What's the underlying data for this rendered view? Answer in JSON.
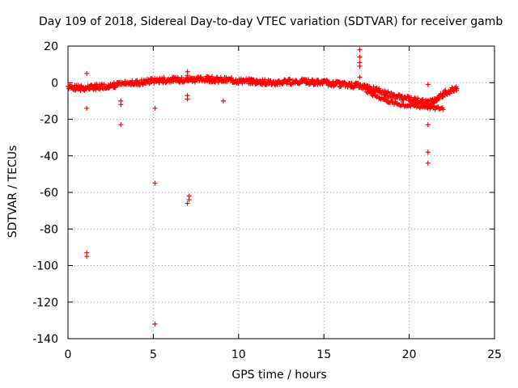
{
  "chart_data": {
    "type": "scatter",
    "title": "Day 109 of 2018, Sidereal Day-to-day VTEC variation (SDTVAR) for receiver gamb",
    "xlabel": "GPS time / hours",
    "ylabel": "SDTVAR / TECUs",
    "xlim": [
      0,
      25
    ],
    "ylim": [
      -140,
      20
    ],
    "xticks": [
      "0",
      "5",
      "10",
      "15",
      "20",
      "25"
    ],
    "yticks": [
      "20",
      "0",
      "-20",
      "-40",
      "-60",
      "-80",
      "-100",
      "-120",
      "-140"
    ],
    "grid": true,
    "marker": "+",
    "color": "#ff0000",
    "series": [
      {
        "name": "SDTVAR",
        "baseline_curve": [
          [
            0.0,
            -2
          ],
          [
            0.5,
            -3
          ],
          [
            1.0,
            -3
          ],
          [
            1.5,
            -2.5
          ],
          [
            2.0,
            -2
          ],
          [
            2.5,
            -1.5
          ],
          [
            3.0,
            -1
          ],
          [
            4.0,
            0
          ],
          [
            5.0,
            1
          ],
          [
            6.0,
            1.5
          ],
          [
            7.0,
            1.5
          ],
          [
            8.0,
            2
          ],
          [
            9.0,
            1.5
          ],
          [
            10.0,
            1
          ],
          [
            11.0,
            0.5
          ],
          [
            12.0,
            0
          ],
          [
            13.0,
            0.5
          ],
          [
            14.0,
            0.5
          ],
          [
            15.0,
            0
          ],
          [
            16.0,
            -1
          ],
          [
            17.0,
            -1.5
          ],
          [
            18.0,
            -4
          ],
          [
            19.0,
            -7
          ],
          [
            20.0,
            -9
          ],
          [
            20.5,
            -10
          ],
          [
            21.0,
            -11
          ],
          [
            21.5,
            -10
          ],
          [
            22.0,
            -6
          ],
          [
            22.5,
            -4
          ],
          [
            22.8,
            -3
          ]
        ],
        "secondary_curve": [
          [
            17.5,
            -5
          ],
          [
            18.0,
            -7
          ],
          [
            18.5,
            -9
          ],
          [
            19.0,
            -11
          ],
          [
            19.5,
            -12
          ],
          [
            20.0,
            -12.5
          ],
          [
            20.5,
            -13
          ],
          [
            21.0,
            -13
          ],
          [
            21.5,
            -14
          ],
          [
            22.0,
            -14
          ]
        ],
        "outliers": [
          [
            1.1,
            5
          ],
          [
            1.1,
            -14
          ],
          [
            1.1,
            -93
          ],
          [
            1.1,
            -95
          ],
          [
            3.1,
            -10
          ],
          [
            3.1,
            -12
          ],
          [
            3.1,
            -23
          ],
          [
            5.1,
            -14
          ],
          [
            5.1,
            -55
          ],
          [
            5.1,
            -132
          ],
          [
            7.0,
            6
          ],
          [
            7.0,
            4
          ],
          [
            7.0,
            -7
          ],
          [
            7.0,
            -9
          ],
          [
            7.1,
            -62
          ],
          [
            7.1,
            -64
          ],
          [
            7.0,
            -66
          ],
          [
            9.1,
            -10
          ],
          [
            17.1,
            18
          ],
          [
            17.1,
            14
          ],
          [
            17.1,
            11
          ],
          [
            17.1,
            9
          ],
          [
            17.1,
            3
          ],
          [
            21.1,
            -1
          ],
          [
            21.1,
            -23
          ],
          [
            21.1,
            -38
          ],
          [
            21.1,
            -44
          ]
        ]
      }
    ]
  }
}
